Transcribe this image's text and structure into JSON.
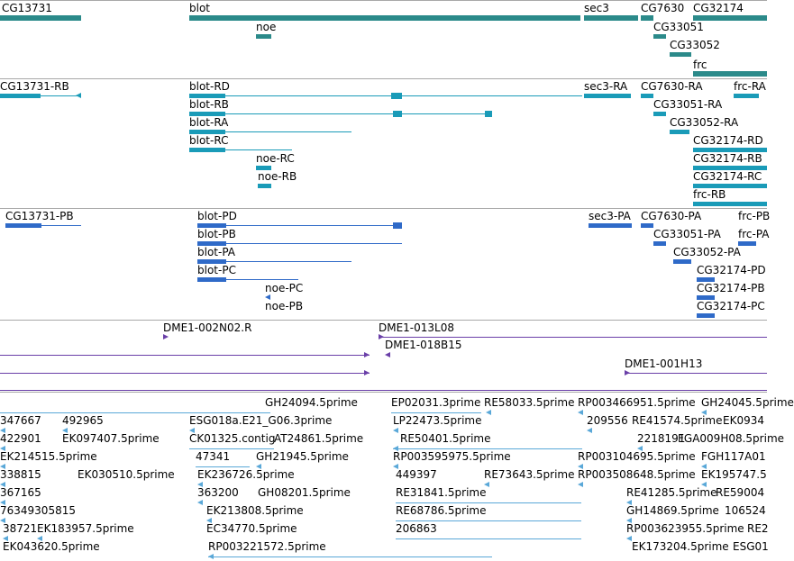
{
  "tracks": {
    "genes": {
      "labels": [
        "CG13731",
        "blot",
        "sec3",
        "CG7630",
        "CG32174",
        "noe",
        "CG33051",
        "CG33052",
        "frc"
      ]
    },
    "transcripts": {
      "labels": [
        "CG13731-RB",
        "blot-RD",
        "blot-RB",
        "blot-RA",
        "blot-RC",
        "noe-RC",
        "noe-RB",
        "sec3-RA",
        "CG7630-RA",
        "frc-RA",
        "CG33051-RA",
        "CG33052-RA",
        "CG32174-RD",
        "CG32174-RB",
        "CG32174-RC",
        "frc-RB"
      ]
    },
    "proteins": {
      "labels": [
        "CG13731-PB",
        "blot-PD",
        "blot-PB",
        "blot-PA",
        "blot-PC",
        "noe-PC",
        "noe-PB",
        "sec3-PA",
        "CG7630-PA",
        "frc-PB",
        "frc-PA",
        "CG33051-PA",
        "CG33052-PA",
        "CG32174-PD",
        "CG32174-PB",
        "CG32174-PC"
      ]
    },
    "clones": {
      "labels": [
        "DME1-002N02.R",
        "DME1-013L08",
        "DME1-018B15",
        "DME1-001H13"
      ]
    },
    "ests": {
      "labels": [
        "GH24094.5prime",
        "EP02031.3prime",
        "RE58033.5prime",
        "RP003466951.5prime",
        "GH24045.5prime",
        "347667",
        "492965",
        "ESG018a.E21_G06.3prime",
        "LP22473.5prime",
        "209556",
        "RE41574.5prime",
        "EK0934",
        "422901",
        "EK097407.5prime",
        "CK01325.contig",
        "AT24861.5prime",
        "RE50401.5prime",
        "2218191",
        "FGA009H08.5prime",
        "EK214515.5prime",
        "47341",
        "GH21945.5prime",
        "RP003595975.5prime",
        "RP003104695.5prime",
        "FGH117A01",
        "338815",
        "EK030510.5prime",
        "EK236726.5prime",
        "449397",
        "RE73643.5prime",
        "RP003508648.5prime",
        "EK195747.5",
        "367165",
        "363200",
        "GH08201.5prime",
        "RE31841.5prime",
        "RE41285.5prime",
        "RE59004",
        "76349305815",
        "EK213808.5prime",
        "RE68786.5prime",
        "GH14869.5prime",
        "106524",
        "38721",
        "EK183957.5prime",
        "EC34770.5prime",
        "206863",
        "RP003623955.5prime",
        "RE2",
        "EK043620.5prime",
        "RP003221572.5prime",
        "EK173204.5prime",
        "ESG01"
      ]
    }
  }
}
